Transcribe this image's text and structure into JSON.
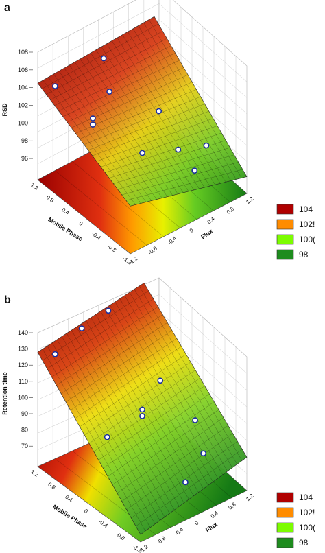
{
  "panels": [
    {
      "letter": "a",
      "zlabel": "RSD",
      "xlabel": "Flux",
      "ylabel": "Mobile Phase",
      "z_ticks": [
        "108",
        "106",
        "104",
        "102",
        "100",
        "98",
        "96"
      ],
      "flux_ticks": [
        "-1.2",
        "-0.8",
        "-0.4",
        "0",
        "0.4",
        "0.8",
        "1.2"
      ],
      "mp_ticks": [
        "1.2",
        "0.8",
        "0.4",
        "0",
        "-0.4",
        "-0.8",
        "-1.2"
      ],
      "legend": [
        "104",
        "102",
        "100",
        "98"
      ],
      "legend_display": [
        "104",
        "102!",
        "100(",
        "98"
      ]
    },
    {
      "letter": "b",
      "zlabel": "Retention time",
      "xlabel": "Flux",
      "ylabel": "Mobile Phase",
      "z_ticks": [
        "140",
        "130",
        "120",
        "110",
        "100",
        "90",
        "80",
        "70"
      ],
      "flux_ticks": [
        "-1.2",
        "-0.8",
        "-0.4",
        "0",
        "0.4",
        "0.8",
        "1.2"
      ],
      "mp_ticks": [
        "1.2",
        "0.8",
        "0.4",
        "0",
        "-0.4",
        "-0.8",
        "-1.2"
      ],
      "legend": [
        "104",
        "102",
        "100",
        "98"
      ],
      "legend_display": [
        "104",
        "102!",
        "100(",
        "98"
      ]
    }
  ],
  "colors": {
    "legend": [
      "#b00000",
      "#ff8c00",
      "#7cfc00",
      "#1e8c1e"
    ],
    "grid": "#c8c8c8"
  },
  "chart_data": [
    {
      "type": "surface3d",
      "title": "",
      "zlabel": "RSD",
      "xlabel": "Flux",
      "ylabel": "Mobile Phase",
      "zlim": [
        95,
        108
      ],
      "xlim": [
        -1.2,
        1.2
      ],
      "ylim": [
        -1.2,
        1.2
      ],
      "legend": [
        "104",
        "102",
        "100",
        "98"
      ],
      "points": [
        {
          "flux": -1.0,
          "mp": 1.0,
          "z": 104.3
        },
        {
          "flux": -0.7,
          "mp": 0.4,
          "z": 101.9
        },
        {
          "flux": -0.7,
          "mp": 0.4,
          "z": 101.2
        },
        {
          "flux": 0.0,
          "mp": 1.0,
          "z": 104.6
        },
        {
          "flux": -0.2,
          "mp": 0.6,
          "z": 102.8
        },
        {
          "flux": 0.0,
          "mp": 0.0,
          "z": 97.4
        },
        {
          "flux": 0.5,
          "mp": 0.2,
          "z": 100.0
        },
        {
          "flux": 0.5,
          "mp": -0.3,
          "z": 97.4
        },
        {
          "flux": 0.6,
          "mp": -0.6,
          "z": 95.8
        },
        {
          "flux": 1.0,
          "mp": -0.4,
          "z": 96.8
        }
      ]
    },
    {
      "type": "surface3d",
      "title": "",
      "zlabel": "Retention time",
      "xlabel": "Flux",
      "ylabel": "Mobile Phase",
      "zlim": [
        65,
        140
      ],
      "xlim": [
        -1.2,
        1.2
      ],
      "ylim": [
        -1.2,
        1.2
      ],
      "legend": [
        "104",
        "102",
        "100",
        "98"
      ],
      "points": [
        {
          "flux": -1.0,
          "mp": 1.0,
          "z": 128
        },
        {
          "flux": -0.4,
          "mp": 1.0,
          "z": 136
        },
        {
          "flux": 0.2,
          "mp": 1.0,
          "z": 139
        },
        {
          "flux": -0.6,
          "mp": 0.2,
          "z": 87
        },
        {
          "flux": 0.0,
          "mp": 0.0,
          "z": 100
        },
        {
          "flux": 0.0,
          "mp": 0.0,
          "z": 96
        },
        {
          "flux": 0.6,
          "mp": 0.2,
          "z": 106
        },
        {
          "flux": 0.2,
          "mp": -0.8,
          "z": 68
        },
        {
          "flux": 0.8,
          "mp": -0.6,
          "z": 74
        },
        {
          "flux": 1.0,
          "mp": -0.2,
          "z": 84
        }
      ]
    }
  ]
}
